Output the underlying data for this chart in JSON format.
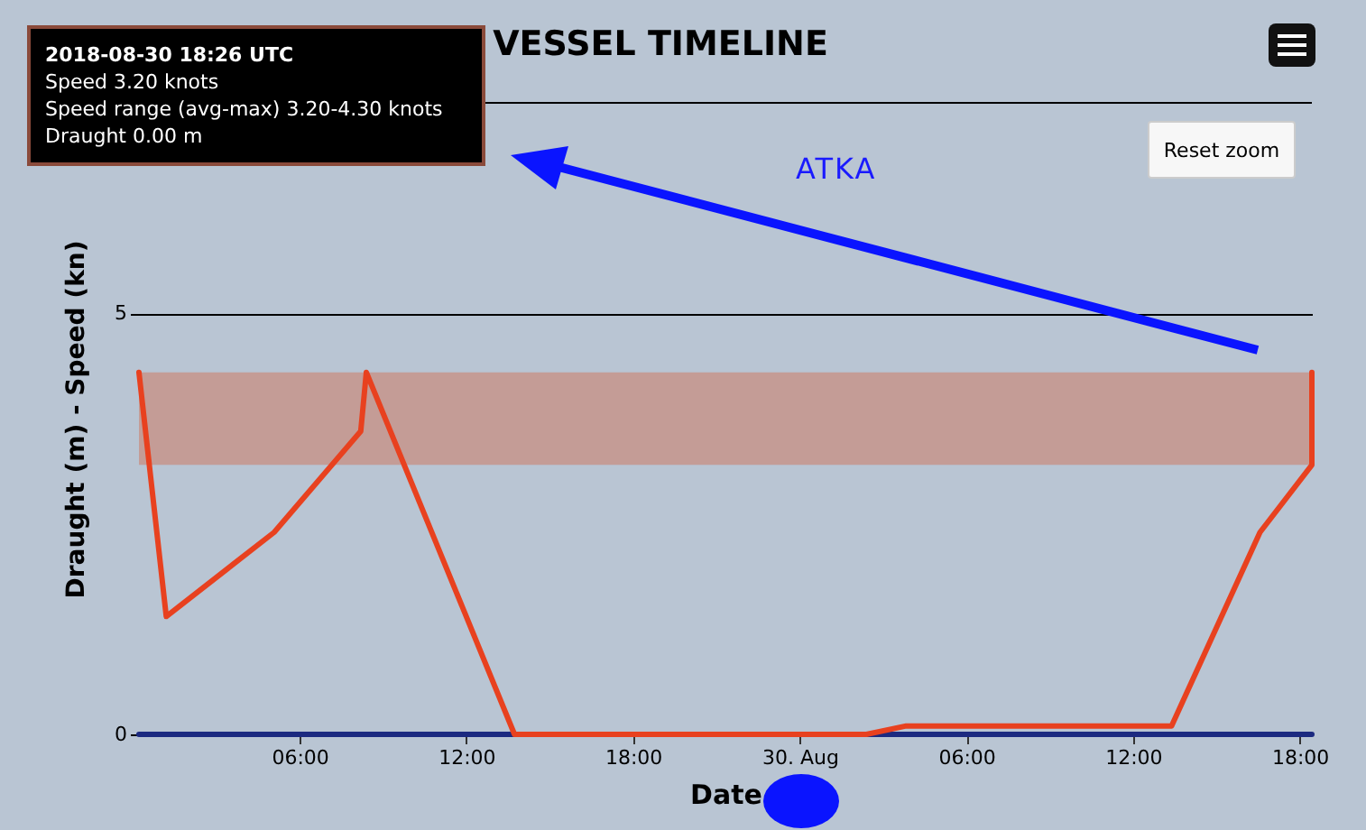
{
  "chart_data": {
    "type": "line",
    "title": "VESSEL TIMELINE",
    "xlabel": "Date",
    "ylabel": "Draught (m) - Speed (kn)",
    "annotations": [
      "2018-08-30 18:26 UTC",
      "Speed 3.20 knots",
      "Speed range (avg-max) 3.20-4.30 knots",
      "Draught 0.00 m",
      "ATKA",
      "Reset zoom"
    ],
    "xlim": [
      "2018-08-29T00:13",
      "2018-08-30T18:26"
    ],
    "xticks": [
      {
        "value": "2018-08-29T06:00",
        "label": "06:00"
      },
      {
        "value": "2018-08-29T12:00",
        "label": "12:00"
      },
      {
        "value": "2018-08-29T18:00",
        "label": "18:00"
      },
      {
        "value": "2018-08-30T00:00",
        "label": "30. Aug"
      },
      {
        "value": "2018-08-30T06:00",
        "label": "06:00"
      },
      {
        "value": "2018-08-30T12:00",
        "label": "12:00"
      },
      {
        "value": "2018-08-30T18:00",
        "label": "18:00"
      }
    ],
    "ylim": [
      0,
      7.5
    ],
    "yticks": [
      0,
      5
    ],
    "grid": "y",
    "bands": [
      {
        "axis": "y",
        "from": 3.2,
        "to": 4.3,
        "color": "#c49c96"
      }
    ],
    "series": [
      {
        "type": "line",
        "color": "#1c2a80",
        "x": [
          "2018-08-29T00:13",
          "2018-08-30T18:26"
        ],
        "values": [
          0,
          0
        ]
      },
      {
        "type": "line",
        "color": "#e8411f",
        "x": [
          "2018-08-29T00:13",
          "2018-08-29T01:12",
          "2018-08-29T05:05",
          "2018-08-29T08:12",
          "2018-08-29T08:24",
          "2018-08-29T13:44",
          "2018-08-30T02:24",
          "2018-08-30T03:50",
          "2018-08-30T13:23",
          "2018-08-30T16:34",
          "2018-08-30T18:26",
          "2018-08-30T18:26"
        ],
        "values": [
          4.3,
          1.4,
          2.4,
          3.6,
          4.3,
          0,
          0,
          0.1,
          0.1,
          2.4,
          3.2,
          4.3
        ]
      }
    ]
  }
}
